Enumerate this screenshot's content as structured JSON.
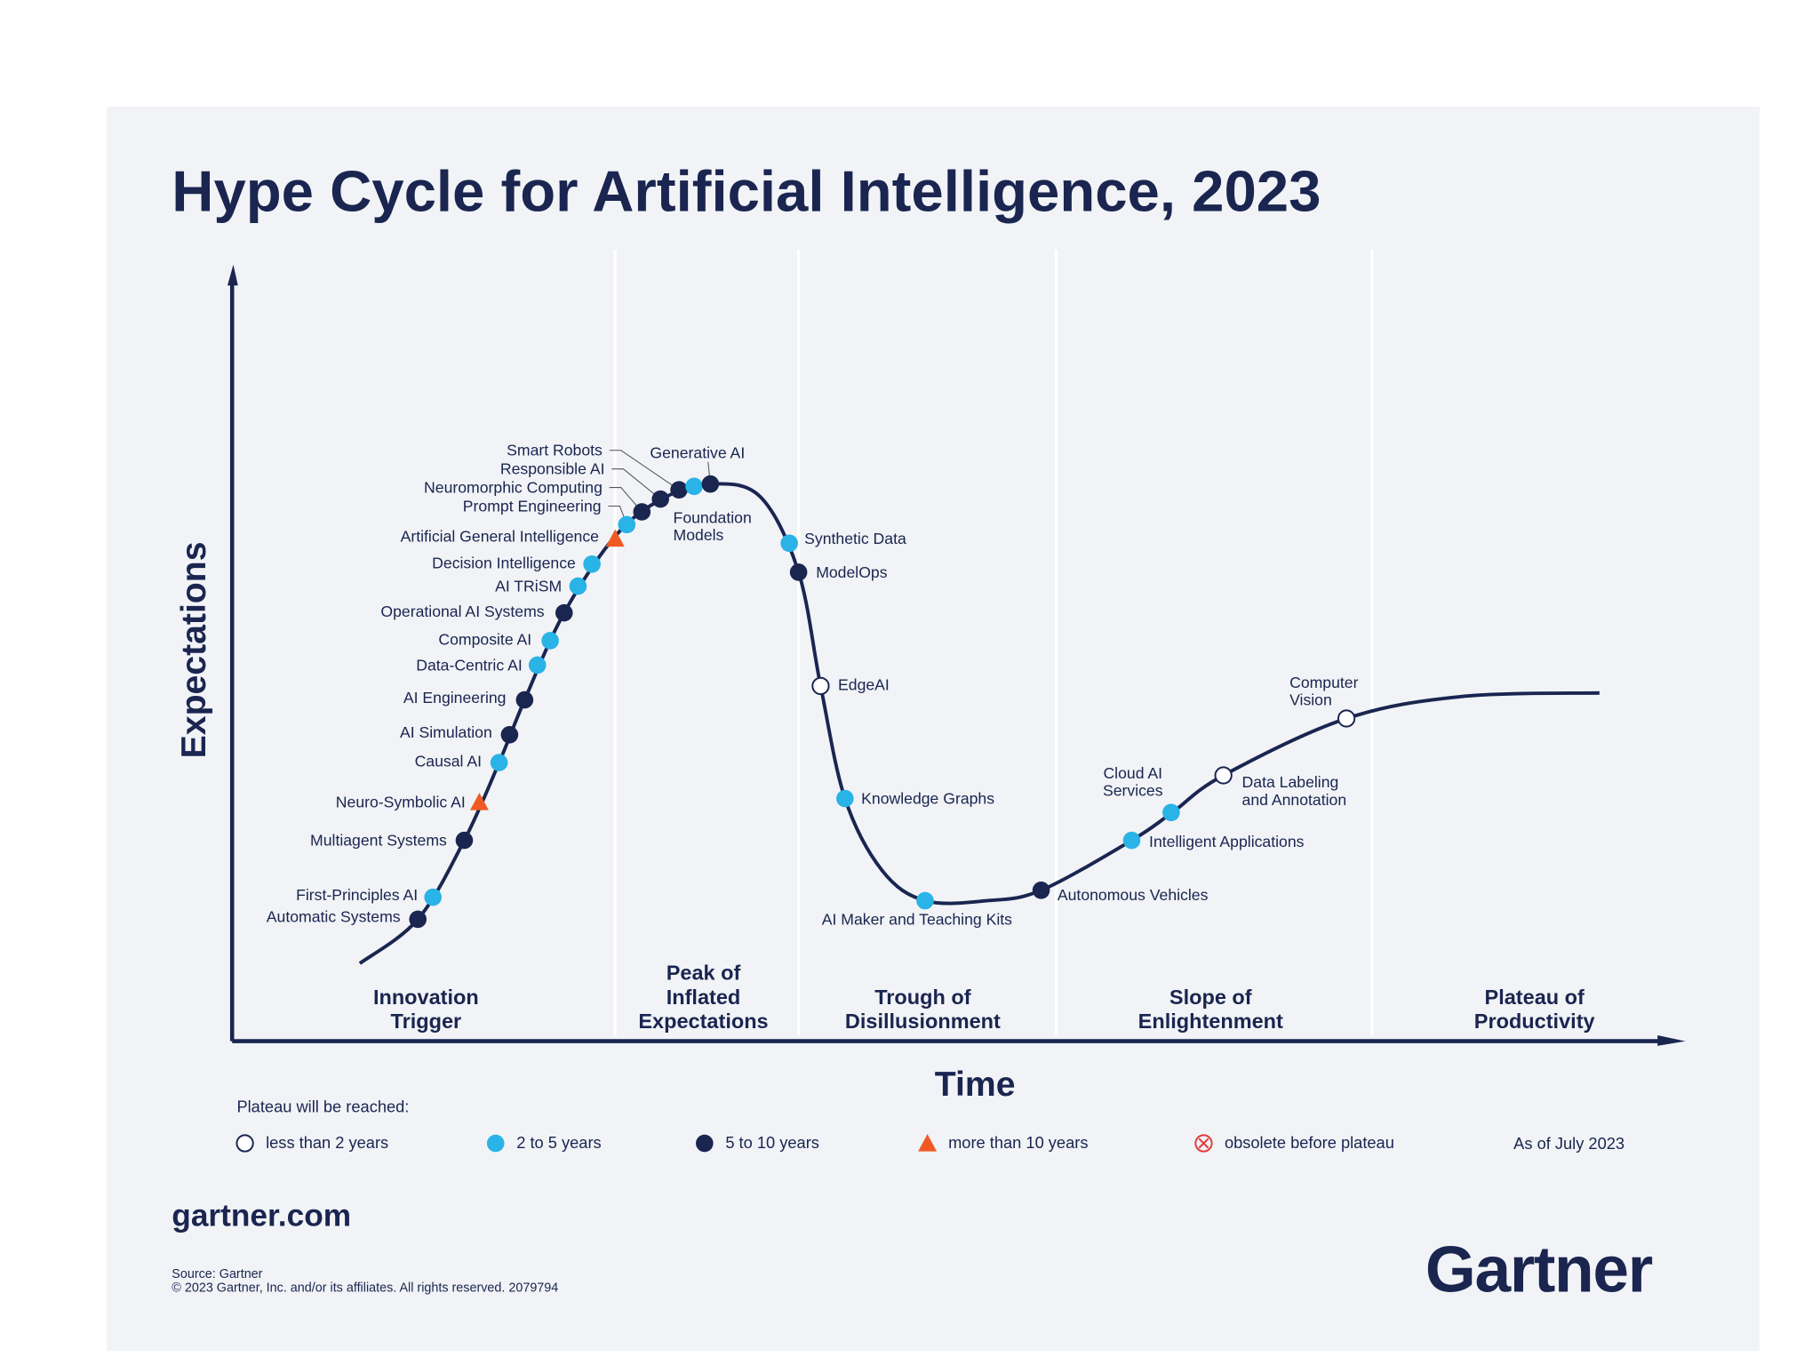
{
  "title": "Hype Cycle for Artificial Intelligence, 2023",
  "y_axis_label": "Expectations",
  "x_axis_label": "Time",
  "phases": [
    [
      "Innovation",
      "Trigger"
    ],
    [
      "Peak of",
      "Inflated",
      "Expectations"
    ],
    [
      "Trough of",
      "Disillusionment"
    ],
    [
      "Slope of",
      "Enlightenment"
    ],
    [
      "Plateau of",
      "Productivity"
    ]
  ],
  "legend": {
    "title": "Plateau will be reached:",
    "items": [
      "less than 2 years",
      "2 to 5 years",
      "5 to 10 years",
      "more than 10 years",
      "obsolete before plateau"
    ],
    "note": "As of July 2023"
  },
  "items": [
    {
      "label": [
        "Automatic Systems"
      ],
      "plateau": 2
    },
    {
      "label": [
        "First-Principles AI"
      ],
      "plateau": 1
    },
    {
      "label": [
        "Multiagent Systems"
      ],
      "plateau": 2
    },
    {
      "label": [
        "Neuro-Symbolic AI"
      ],
      "plateau": 3
    },
    {
      "label": [
        "Causal AI"
      ],
      "plateau": 1
    },
    {
      "label": [
        "AI Simulation"
      ],
      "plateau": 2
    },
    {
      "label": [
        "AI Engineering"
      ],
      "plateau": 2
    },
    {
      "label": [
        "Data-Centric AI"
      ],
      "plateau": 1
    },
    {
      "label": [
        "Composite AI"
      ],
      "plateau": 1
    },
    {
      "label": [
        "Operational AI Systems"
      ],
      "plateau": 2
    },
    {
      "label": [
        "AI TRiSM"
      ],
      "plateau": 1
    },
    {
      "label": [
        "Decision Intelligence"
      ],
      "plateau": 1
    },
    {
      "label": [
        "Artificial General Intelligence"
      ],
      "plateau": 3
    },
    {
      "label": [
        "Prompt Engineering"
      ],
      "plateau": 1
    },
    {
      "label": [
        "Neuromorphic Computing"
      ],
      "plateau": 2
    },
    {
      "label": [
        "Responsible AI"
      ],
      "plateau": 2
    },
    {
      "label": [
        "Smart Robots"
      ],
      "plateau": 2
    },
    {
      "label": [
        "Foundation",
        "Models"
      ],
      "plateau": 1
    },
    {
      "label": [
        "Generative AI"
      ],
      "plateau": 2
    },
    {
      "label": [
        "Synthetic Data"
      ],
      "plateau": 1
    },
    {
      "label": [
        "ModelOps"
      ],
      "plateau": 2
    },
    {
      "label": [
        "EdgeAI"
      ],
      "plateau": 0
    },
    {
      "label": [
        "Knowledge Graphs"
      ],
      "plateau": 1
    },
    {
      "label": [
        "AI Maker and Teaching Kits"
      ],
      "plateau": 1
    },
    {
      "label": [
        "Autonomous Vehicles"
      ],
      "plateau": 2
    },
    {
      "label": [
        "Intelligent Applications"
      ],
      "plateau": 1
    },
    {
      "label": [
        "Cloud AI",
        "Services"
      ],
      "plateau": 1
    },
    {
      "label": [
        "Data Labeling",
        "and Annotation"
      ],
      "plateau": 0
    },
    {
      "label": [
        "Computer",
        "Vision"
      ],
      "plateau": 0
    }
  ],
  "footer": {
    "site": "gartner.com",
    "source": "Source: Gartner",
    "copyright": "© 2023 Gartner, Inc. and/or its affiliates. All rights reserved. 2079794",
    "logo": "Gartner"
  }
}
